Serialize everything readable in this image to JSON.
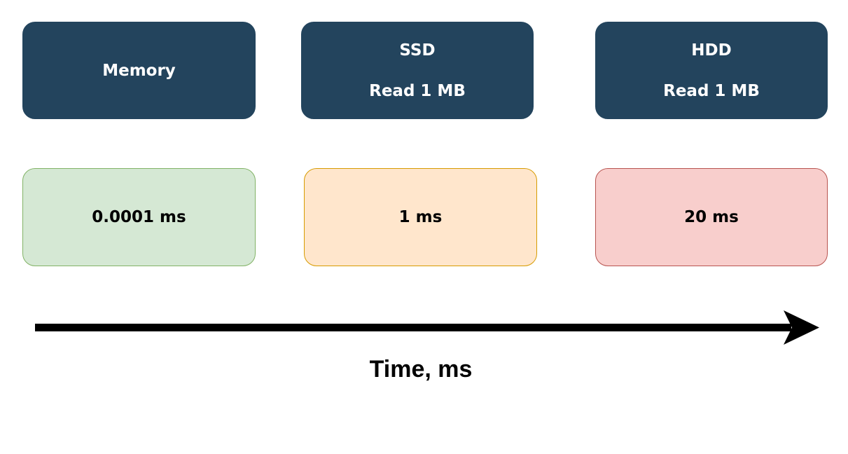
{
  "storage": [
    {
      "name": "Memory",
      "op": ""
    },
    {
      "name": "SSD",
      "op": "Read 1 MB"
    },
    {
      "name": "HDD",
      "op": "Read 1 MB"
    }
  ],
  "latency": [
    "0.0001 ms",
    "1 ms",
    "20 ms"
  ],
  "axis": {
    "label": "Time, ms"
  },
  "colors": {
    "header_fill": "#23445d",
    "memory_fill": "#d5e8d4",
    "memory_stroke": "#82b366",
    "ssd_fill": "#ffe6cc",
    "ssd_stroke": "#d79b00",
    "hdd_fill": "#f8cecc",
    "hdd_stroke": "#b85450",
    "arrow": "#000000"
  }
}
